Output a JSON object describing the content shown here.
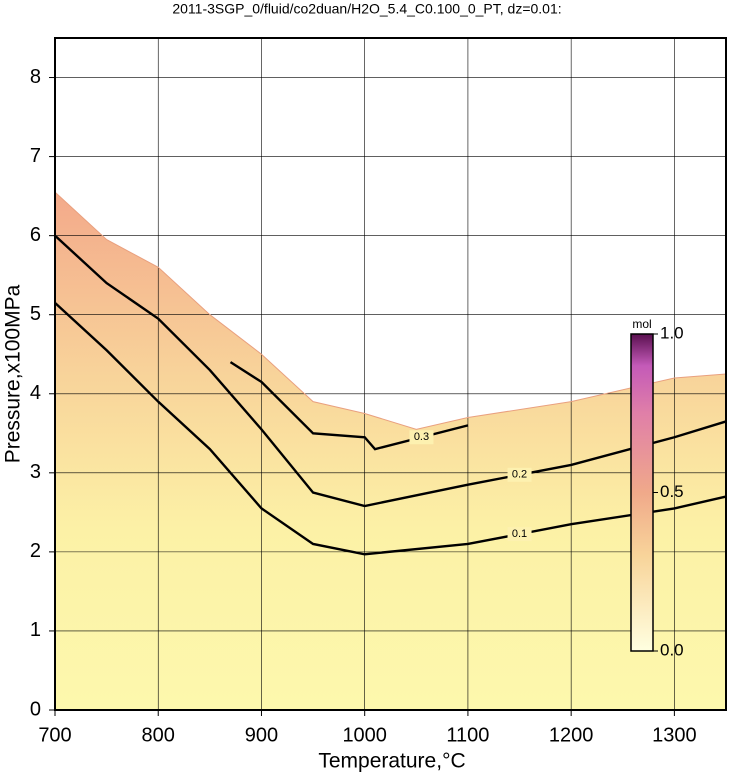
{
  "chart_data": {
    "type": "contour",
    "title": "2011-3SGP_0/fluid/co2duan/H2O_5.4_C0.100_0_PT, dz=0.01:",
    "x_label": "Temperature,°C",
    "y_label": "Pressure,x100MPa",
    "xlim": [
      700,
      1350
    ],
    "ylim": [
      0,
      8.5
    ],
    "xticks": [
      700,
      800,
      900,
      1000,
      1100,
      1200,
      1300
    ],
    "yticks": [
      0,
      1,
      2,
      3,
      4,
      5,
      6,
      7,
      8
    ],
    "grid": true,
    "boundary": {
      "x": [
        700,
        750,
        800,
        850,
        900,
        950,
        1000,
        1050,
        1100,
        1200,
        1300,
        1350
      ],
      "y": [
        6.55,
        5.95,
        5.6,
        5.0,
        4.5,
        3.9,
        3.75,
        3.55,
        3.7,
        3.9,
        4.2,
        4.25
      ]
    },
    "series": [
      {
        "name": "0.1",
        "color": "#000000",
        "x": [
          700,
          750,
          800,
          850,
          900,
          950,
          1000,
          1100,
          1200,
          1300,
          1350
        ],
        "y": [
          5.15,
          4.55,
          3.9,
          3.3,
          2.55,
          2.1,
          1.97,
          2.1,
          2.35,
          2.55,
          2.7
        ]
      },
      {
        "name": "0.2",
        "color": "#000000",
        "x": [
          700,
          750,
          800,
          850,
          900,
          950,
          1000,
          1100,
          1200,
          1300,
          1350
        ],
        "y": [
          6.0,
          5.4,
          4.95,
          4.3,
          3.55,
          2.75,
          2.58,
          2.85,
          3.1,
          3.45,
          3.65
        ]
      },
      {
        "name": "0.3",
        "color": "#000000",
        "x": [
          870,
          900,
          950,
          1000,
          1010,
          1100
        ],
        "y": [
          4.4,
          4.15,
          3.5,
          3.45,
          3.3,
          3.6
        ]
      }
    ],
    "colorbar": {
      "label": "mol",
      "lim": [
        0,
        1
      ],
      "ticks": [
        {
          "value": 0,
          "label": "0.0"
        },
        0.5,
        {
          "value": 1,
          "label": "1.0"
        }
      ]
    }
  }
}
